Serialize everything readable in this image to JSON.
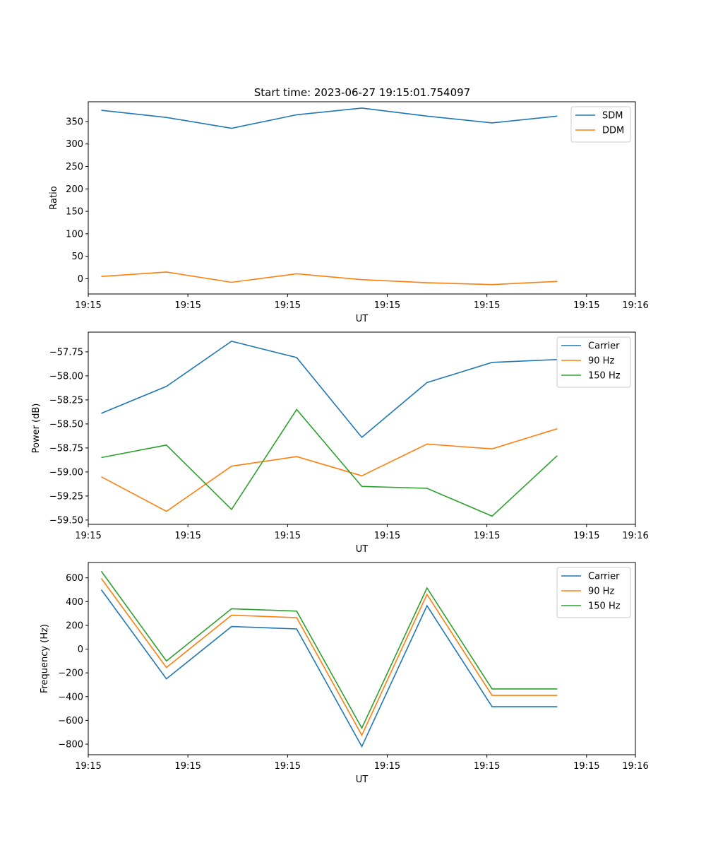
{
  "figure": {
    "title": "Start time: 2023-06-27 19:15:01.754097"
  },
  "colors": {
    "blue": "#1f77b4",
    "orange": "#ff7f0e",
    "green": "#2ca02c"
  },
  "chart_data": [
    {
      "type": "line",
      "title": "Start time: 2023-06-27 19:15:01.754097",
      "xlabel": "UT",
      "ylabel": "Ratio",
      "x": [
        1,
        2,
        3,
        4,
        5,
        6,
        7,
        8
      ],
      "xlim": [
        0.8,
        9.2
      ],
      "x_ticks": [
        0.8,
        2.33,
        3.86,
        5.39,
        6.92,
        8.45,
        9.2
      ],
      "x_tick_labels": [
        "19:15",
        "19:15",
        "19:15",
        "19:15",
        "19:15",
        "19:15",
        "19:16"
      ],
      "ylim": [
        -34,
        394
      ],
      "y_ticks": [
        0,
        50,
        100,
        150,
        200,
        250,
        300,
        350
      ],
      "y_tick_labels": [
        "0",
        "50",
        "100",
        "150",
        "200",
        "250",
        "300",
        "350"
      ],
      "legend_position": "top-right",
      "grid": false,
      "series": [
        {
          "name": "SDM",
          "color": "#1f77b4",
          "values": [
            375,
            359,
            335,
            365,
            380,
            362,
            347,
            362
          ]
        },
        {
          "name": "DDM",
          "color": "#ff7f0e",
          "values": [
            5,
            15,
            -8,
            11,
            -2,
            -9,
            -13,
            -6
          ]
        }
      ]
    },
    {
      "type": "line",
      "xlabel": "UT",
      "ylabel": "Power (dB)",
      "x": [
        1,
        2,
        3,
        4,
        5,
        6,
        7,
        8
      ],
      "xlim": [
        0.8,
        9.2
      ],
      "x_ticks": [
        0.8,
        2.33,
        3.86,
        5.39,
        6.92,
        8.45,
        9.2
      ],
      "x_tick_labels": [
        "19:15",
        "19:15",
        "19:15",
        "19:15",
        "19:15",
        "19:15",
        "19:16"
      ],
      "ylim": [
        -59.545,
        -57.545
      ],
      "y_ticks": [
        -59.5,
        -59.25,
        -59.0,
        -58.75,
        -58.5,
        -58.25,
        -58.0,
        -57.75
      ],
      "y_tick_labels": [
        "−59.50",
        "−59.25",
        "−59.00",
        "−58.75",
        "−58.50",
        "−58.25",
        "−58.00",
        "−57.75"
      ],
      "legend_position": "top-right",
      "grid": false,
      "series": [
        {
          "name": "Carrier",
          "color": "#1f77b4",
          "values": [
            -58.39,
            -58.11,
            -57.64,
            -57.81,
            -58.64,
            -58.07,
            -57.86,
            -57.83
          ]
        },
        {
          "name": "90 Hz",
          "color": "#ff7f0e",
          "values": [
            -59.05,
            -59.41,
            -58.94,
            -58.84,
            -59.04,
            -58.71,
            -58.76,
            -58.55
          ]
        },
        {
          "name": "150 Hz",
          "color": "#2ca02c",
          "values": [
            -58.85,
            -58.72,
            -59.39,
            -58.35,
            -59.15,
            -59.17,
            -59.46,
            -58.83
          ]
        }
      ]
    },
    {
      "type": "line",
      "xlabel": "UT",
      "ylabel": "Frequency (Hz)",
      "x": [
        1,
        2,
        3,
        4,
        5,
        6,
        7,
        8
      ],
      "xlim": [
        0.8,
        9.2
      ],
      "x_ticks": [
        0.8,
        2.33,
        3.86,
        5.39,
        6.92,
        8.45,
        9.2
      ],
      "x_tick_labels": [
        "19:15",
        "19:15",
        "19:15",
        "19:15",
        "19:15",
        "19:15",
        "19:16"
      ],
      "ylim": [
        -889,
        729
      ],
      "y_ticks": [
        -800,
        -600,
        -400,
        -200,
        0,
        200,
        400,
        600
      ],
      "y_tick_labels": [
        "−800",
        "−600",
        "−400",
        "−200",
        "0",
        "200",
        "400",
        "600"
      ],
      "legend_position": "top-right",
      "grid": false,
      "series": [
        {
          "name": "Carrier",
          "color": "#1f77b4",
          "values": [
            500,
            -250,
            190,
            170,
            -820,
            365,
            -485,
            -485
          ]
        },
        {
          "name": "90 Hz",
          "color": "#ff7f0e",
          "values": [
            595,
            -155,
            285,
            265,
            -725,
            460,
            -390,
            -390
          ]
        },
        {
          "name": "150 Hz",
          "color": "#2ca02c",
          "values": [
            655,
            -100,
            340,
            320,
            -665,
            515,
            -335,
            -335
          ]
        }
      ]
    }
  ]
}
